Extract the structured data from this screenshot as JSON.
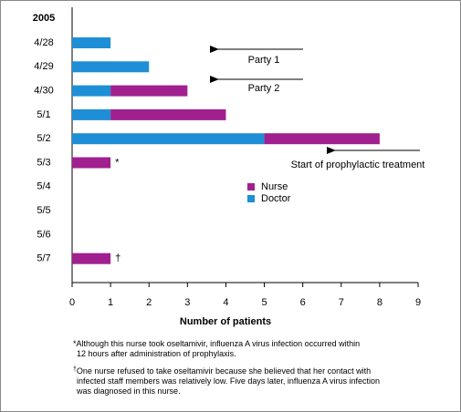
{
  "chart_data": {
    "type": "stacked-barh",
    "year_label": "2005",
    "categories": [
      "4/28",
      "4/29",
      "4/30",
      "5/1",
      "5/2",
      "5/3",
      "5/4",
      "5/5",
      "5/6",
      "5/7"
    ],
    "series": [
      {
        "name": "Doctor",
        "color": "#1e8fd6",
        "values": [
          1,
          2,
          1,
          1,
          5,
          0,
          0,
          0,
          0,
          0
        ]
      },
      {
        "name": "Nurse",
        "color": "#a0208f",
        "values": [
          0,
          0,
          2,
          3,
          3,
          1,
          0,
          0,
          0,
          1
        ]
      }
    ],
    "markers": [
      null,
      null,
      null,
      null,
      null,
      "*",
      null,
      null,
      null,
      "†"
    ],
    "xlim": [
      0,
      9
    ],
    "xticks": [
      0,
      1,
      2,
      3,
      4,
      5,
      6,
      7,
      8,
      9
    ],
    "xlabel": "Number of patients",
    "annotations": [
      "Party 1",
      "Party 2",
      "Start of prophylactic treatment"
    ],
    "footnotes": [
      {
        "symbol": "*",
        "lines": [
          "Although this nurse took oseltamivir, influenza A virus infection occurred within",
          "12 hours after administration of prophylaxis."
        ]
      },
      {
        "symbol": "†",
        "lines": [
          "One nurse refused to take oseltamivir because she believed that her contact with",
          "infected staff members was relatively low. Five days later, influenza A virus infection",
          "was diagnosed in this nurse."
        ]
      }
    ]
  }
}
